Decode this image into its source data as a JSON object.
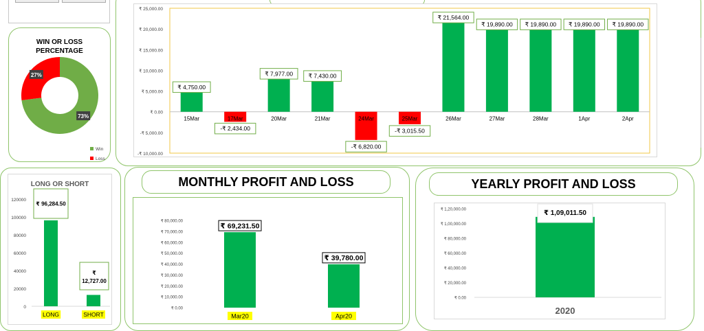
{
  "chart_data": [
    {
      "id": "daily",
      "type": "bar",
      "categories": [
        "15Mar",
        "17Mar",
        "20Mar",
        "21Mar",
        "24Mar",
        "25Mar",
        "26Mar",
        "27Mar",
        "28Mar",
        "1Apr",
        "2Apr"
      ],
      "values": [
        4750,
        -2434,
        7977,
        7430,
        -6820,
        -3015.5,
        21564,
        19890,
        19890,
        19890,
        19890
      ],
      "data_labels": [
        "₹ 4,750.00",
        "-₹ 2,434.00",
        "₹ 7,977.00",
        "₹ 7,430.00",
        "-₹ 6,820.00",
        "-₹ 3,015.50",
        "₹ 21,564.00",
        "₹ 19,890.00",
        "₹ 19,890.00",
        "₹ 19,890.00",
        "₹ 19,890.00"
      ],
      "ylim": [
        -10000,
        25000
      ],
      "yticks": [
        25000,
        20000,
        15000,
        10000,
        5000,
        0,
        -5000,
        -10000
      ],
      "ytick_labels": [
        "₹ 25,000.00",
        "₹ 20,000.00",
        "₹ 15,000.00",
        "₹ 10,000.00",
        "₹ 5,000.00",
        "₹ 0.00",
        "-₹ 5,000.00",
        "-₹ 10,000.00"
      ],
      "positive_color": "#00b050",
      "negative_color": "#ff0000",
      "grid": false
    },
    {
      "id": "winloss",
      "type": "pie",
      "title": "WIN OR LOSS PERCENTAGE",
      "slices": [
        {
          "label": "Win",
          "value": 73,
          "display": "73%",
          "color": "#70ad47"
        },
        {
          "label": "Loss",
          "value": 27,
          "display": "27%",
          "color": "#ff0000"
        }
      ],
      "donut": true,
      "legend": "bottom-right"
    },
    {
      "id": "longshort",
      "type": "bar",
      "title": "LONG OR SHORT",
      "categories": [
        "LONG",
        "SHORT"
      ],
      "values": [
        96284.5,
        12727
      ],
      "data_labels": [
        "₹ 96,284.50",
        "₹ 12,727.00"
      ],
      "ylim": [
        0,
        120000
      ],
      "yticks": [
        0,
        20000,
        40000,
        60000,
        80000,
        100000,
        120000
      ],
      "ytick_labels": [
        "0",
        "20000",
        "40000",
        "60000",
        "80000",
        "100000",
        "120000"
      ],
      "bar_color": "#00b050",
      "category_highlight": "#ffff00"
    },
    {
      "id": "monthly",
      "type": "bar",
      "title": "MONTHLY PROFIT AND LOSS",
      "categories": [
        "Mar20",
        "Apr20"
      ],
      "values": [
        69231.5,
        39780
      ],
      "data_labels": [
        "₹ 69,231.50",
        "₹ 39,780.00"
      ],
      "ylim": [
        0,
        80000
      ],
      "yticks": [
        0,
        10000,
        20000,
        30000,
        40000,
        50000,
        60000,
        70000,
        80000
      ],
      "ytick_labels": [
        "₹ 0.00",
        "₹ 10,000.00",
        "₹ 20,000.00",
        "₹ 30,000.00",
        "₹ 40,000.00",
        "₹ 50,000.00",
        "₹ 60,000.00",
        "₹ 70,000.00",
        "₹ 80,000.00"
      ],
      "bar_color": "#00b050",
      "category_highlight": "#ffff00"
    },
    {
      "id": "yearly",
      "type": "bar",
      "title": "YEARLY PROFIT AND LOSS",
      "categories": [
        "2020"
      ],
      "values": [
        109011.5
      ],
      "data_labels": [
        "₹ 1,09,011.50"
      ],
      "ylim": [
        0,
        120000
      ],
      "yticks": [
        0,
        20000,
        40000,
        60000,
        80000,
        100000,
        120000
      ],
      "ytick_labels": [
        "₹ 0.00",
        "₹ 20,000.00",
        "₹ 40,000.00",
        "₹ 60,000.00",
        "₹ 80,000.00",
        "₹ 1,00,000.00",
        "₹ 1,20,000.00"
      ],
      "bar_color": "#00b050"
    }
  ]
}
